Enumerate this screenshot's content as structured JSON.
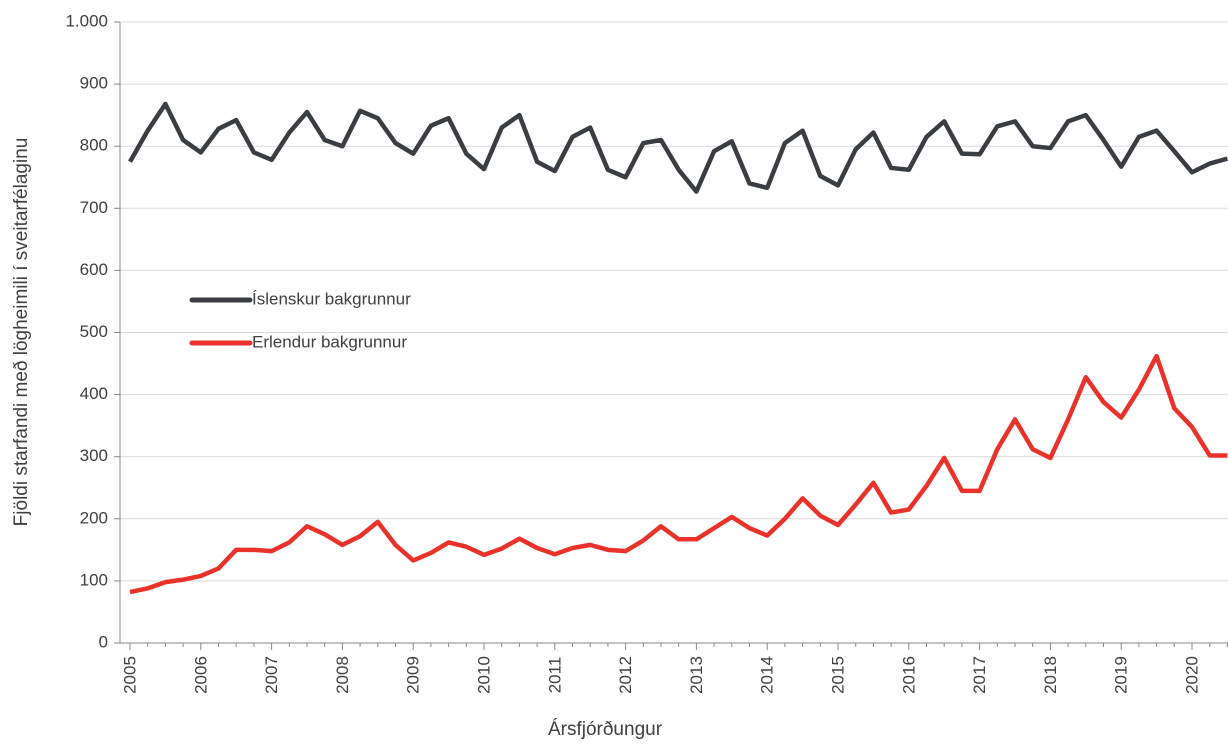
{
  "chart_data": {
    "type": "line",
    "x_label": "Ársfjórðungur",
    "y_label": "Fjöldi starfandi með lögheimili í sveitarfélaginu",
    "categories": [
      "2005",
      null,
      null,
      null,
      "2006",
      null,
      null,
      null,
      "2007",
      null,
      null,
      null,
      "2008",
      null,
      null,
      null,
      "2009",
      null,
      null,
      null,
      "2010",
      null,
      null,
      null,
      "2011",
      null,
      null,
      null,
      "2012",
      null,
      null,
      null,
      "2013",
      null,
      null,
      null,
      "2014",
      null,
      null,
      null,
      "2015",
      null,
      null,
      null,
      "2016",
      null,
      null,
      null,
      "2017",
      null,
      null,
      null,
      "2018",
      null,
      null,
      null,
      "2019",
      null,
      null,
      null,
      "2020",
      null,
      null
    ],
    "series": [
      {
        "name": "Íslenskur bakgrunnur",
        "color": "#3a3d42",
        "values": [
          775,
          825,
          868,
          810,
          790,
          828,
          842,
          790,
          778,
          822,
          855,
          810,
          800,
          857,
          845,
          805,
          788,
          833,
          845,
          788,
          763,
          830,
          850,
          775,
          760,
          815,
          830,
          762,
          750,
          805,
          810,
          762,
          727,
          792,
          808,
          740,
          733,
          805,
          825,
          752,
          737,
          795,
          822,
          765,
          762,
          815,
          840,
          788,
          787,
          832,
          840,
          800,
          797,
          840,
          850,
          810,
          767,
          815,
          825,
          792,
          758,
          772,
          780
        ]
      },
      {
        "name": "Erlendur bakgrunnur",
        "color": "#e8322a",
        "values": [
          82,
          88,
          98,
          102,
          108,
          120,
          150,
          150,
          148,
          162,
          188,
          175,
          158,
          172,
          195,
          158,
          133,
          145,
          162,
          155,
          142,
          152,
          168,
          153,
          143,
          153,
          158,
          150,
          148,
          165,
          188,
          167,
          167,
          185,
          203,
          185,
          173,
          200,
          233,
          205,
          190,
          223,
          258,
          210,
          215,
          253,
          298,
          245,
          245,
          312,
          360,
          312,
          298,
          360,
          428,
          388,
          363,
          408,
          462,
          378,
          348,
          302,
          302
        ]
      }
    ],
    "ylim": [
      0,
      1000
    ],
    "yticks": [
      0,
      100,
      200,
      300,
      400,
      500,
      600,
      700,
      800,
      900,
      {
        "value": 1000,
        "label": "1.000"
      }
    ],
    "grid": true
  }
}
